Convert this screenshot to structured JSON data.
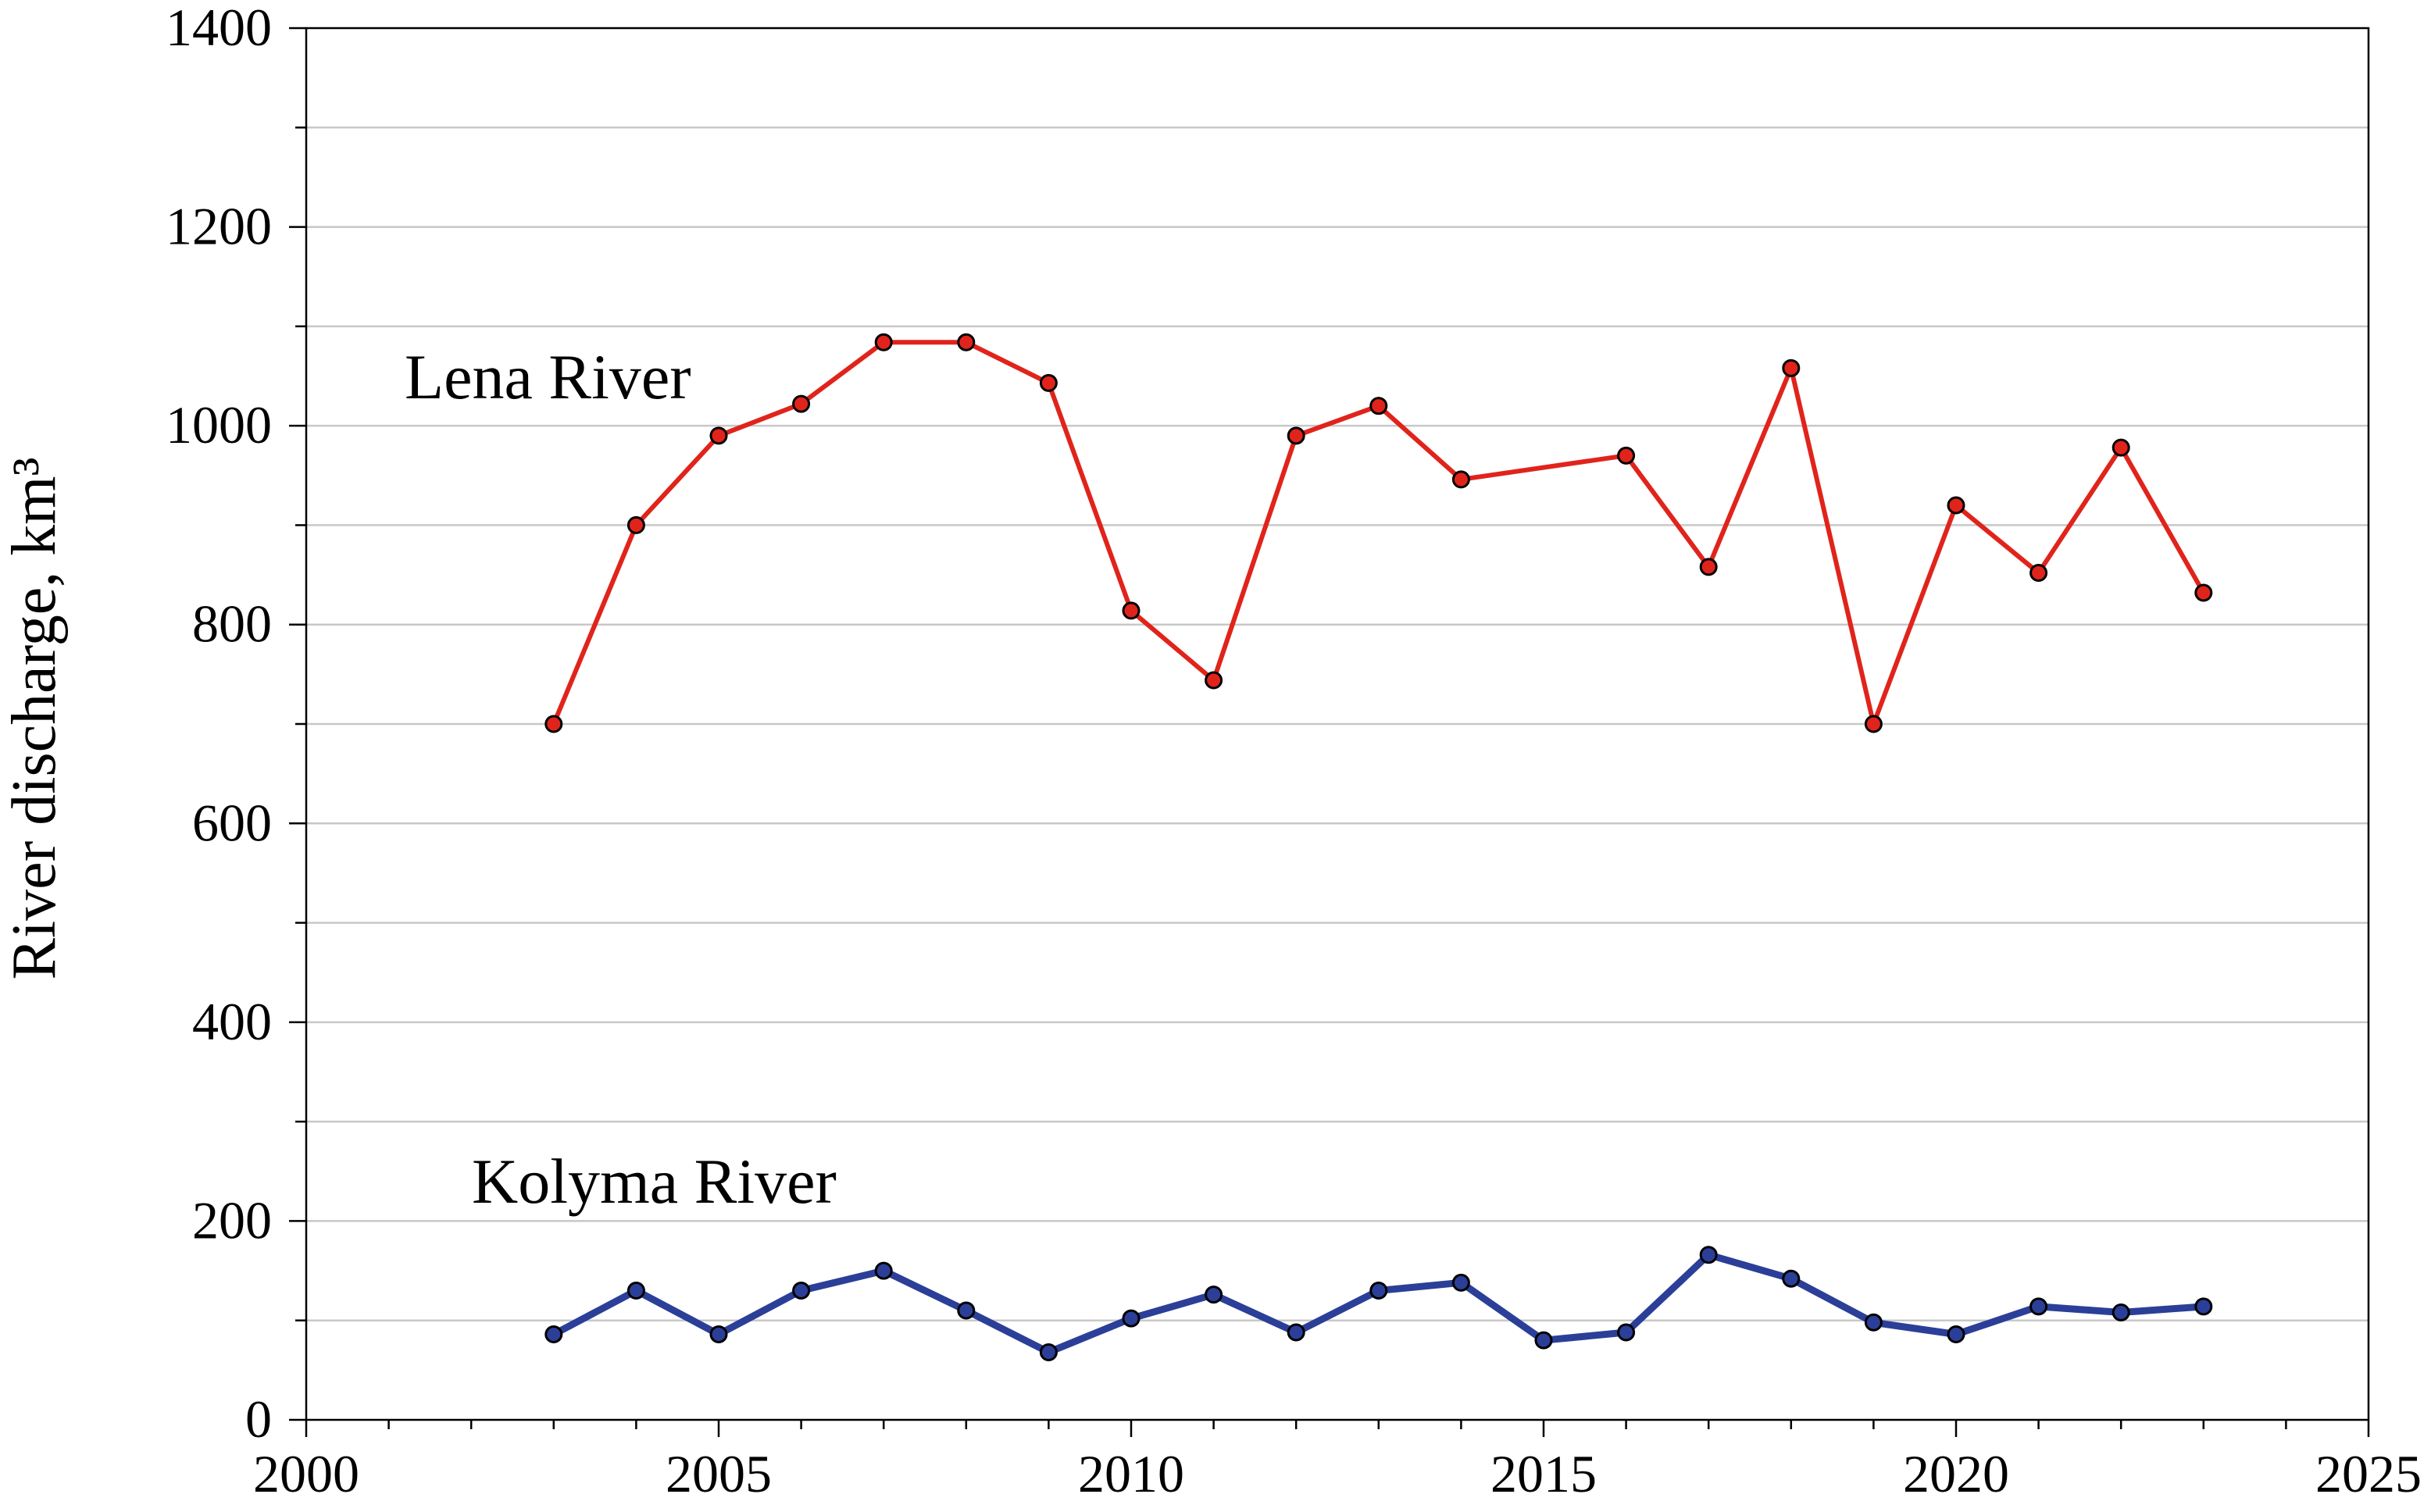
{
  "chart_data": {
    "type": "line",
    "title": "",
    "xlabel": "",
    "ylabel": "River discharge, km³",
    "xlim": [
      2000,
      2025
    ],
    "ylim": [
      0,
      1400
    ],
    "x_ticks": [
      "2000",
      "2005",
      "2010",
      "2015",
      "2020",
      "2025"
    ],
    "y_ticks": [
      "0",
      "200",
      "400",
      "600",
      "800",
      "1000",
      "1200",
      "1400"
    ],
    "grid": "horizontal",
    "series": [
      {
        "name": "Lena River",
        "color": "#e0241b",
        "x": [
          2003,
          2004,
          2005,
          2006,
          2007,
          2008,
          2009,
          2010,
          2011,
          2012,
          2013,
          2014,
          2016,
          2017,
          2018,
          2019,
          2020,
          2021,
          2022,
          2023
        ],
        "values": [
          700,
          900,
          990,
          1022,
          1084,
          1084,
          1043,
          814,
          744,
          990,
          1020,
          946,
          970,
          858,
          1058,
          700,
          920,
          852,
          978,
          832
        ]
      },
      {
        "name": "Kolyma River",
        "color": "#2b3f98",
        "x": [
          2003,
          2004,
          2005,
          2006,
          2007,
          2008,
          2009,
          2010,
          2011,
          2012,
          2013,
          2014,
          2015,
          2016,
          2017,
          2018,
          2019,
          2020,
          2021,
          2022,
          2023
        ],
        "values": [
          86,
          130,
          86,
          130,
          150,
          110,
          68,
          102,
          126,
          88,
          130,
          138,
          80,
          88,
          166,
          142,
          98,
          86,
          114,
          108,
          114
        ]
      }
    ]
  }
}
